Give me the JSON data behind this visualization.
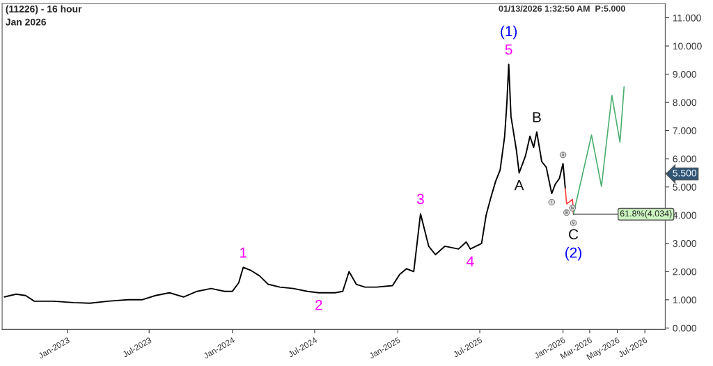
{
  "chart_data": {
    "type": "line",
    "title": "(11226) - 16 hour",
    "subtitle": "Jan 2026",
    "series": [
      {
        "color": "#000000",
        "x": [
          "2022-08-15",
          "2022-09-10",
          "2022-10-01",
          "2022-10-20",
          "2022-12-01",
          "2023-01-15",
          "2023-02-20",
          "2023-04-01",
          "2023-05-15",
          "2023-06-15",
          "2023-07-15",
          "2023-08-15",
          "2023-09-15",
          "2023-10-15",
          "2023-11-15",
          "2023-12-15",
          "2024-01-01",
          "2024-01-15",
          "2024-01-25",
          "2024-02-10",
          "2024-03-01",
          "2024-03-20",
          "2024-04-15",
          "2024-05-15",
          "2024-06-15",
          "2024-07-10",
          "2024-08-15",
          "2024-09-01",
          "2024-09-15",
          "2024-10-01",
          "2024-10-20",
          "2024-11-15",
          "2024-12-20",
          "2025-01-05",
          "2025-01-20",
          "2025-02-05",
          "2025-02-20",
          "2025-03-10",
          "2025-03-25",
          "2025-04-15",
          "2025-05-15",
          "2025-06-01",
          "2025-06-10",
          "2025-07-05",
          "2025-07-15",
          "2025-07-25",
          "2025-08-05",
          "2025-08-15",
          "2025-08-25",
          "2025-08-30",
          "2025-09-03",
          "2025-09-08",
          "2025-09-13",
          "2025-09-20",
          "2025-09-26",
          "2025-10-03",
          "2025-10-10",
          "2025-10-20",
          "2025-10-28",
          "2025-11-04",
          "2025-11-15",
          "2025-11-25",
          "2025-12-07",
          "2025-12-15",
          "2025-12-24",
          "2026-01-01",
          "2026-01-06"
        ],
        "values": [
          1.1,
          1.2,
          1.15,
          0.95,
          0.95,
          0.9,
          0.88,
          0.95,
          1.0,
          1.0,
          1.15,
          1.25,
          1.1,
          1.3,
          1.4,
          1.3,
          1.3,
          1.6,
          2.15,
          2.05,
          1.85,
          1.55,
          1.45,
          1.4,
          1.3,
          1.25,
          1.25,
          1.3,
          2.0,
          1.55,
          1.45,
          1.45,
          1.5,
          1.9,
          2.1,
          2.0,
          4.05,
          2.9,
          2.6,
          2.9,
          2.8,
          3.05,
          2.8,
          3.0,
          4.0,
          4.6,
          5.2,
          5.6,
          6.8,
          8.0,
          9.35,
          7.5,
          7.0,
          6.3,
          5.5,
          5.8,
          6.1,
          6.8,
          6.4,
          6.95,
          5.9,
          5.7,
          4.77,
          5.1,
          5.3,
          5.83,
          4.95
        ]
      },
      {
        "color": "#ff4040",
        "x": [
          "2026-01-06",
          "2026-01-09",
          "2026-01-22",
          "2026-01-24"
        ],
        "values": [
          4.95,
          4.4,
          4.56,
          4.034
        ]
      },
      {
        "color": "#4caf70",
        "x": [
          "2026-01-24",
          "2026-03-05",
          "2026-03-27",
          "2026-04-19",
          "2026-05-07",
          "2026-05-16"
        ],
        "values": [
          4.034,
          6.84,
          5.02,
          8.25,
          6.59,
          8.55
        ]
      }
    ],
    "xlim": [
      "2022-08-10",
      "2026-08-15"
    ],
    "xticks": [
      {
        "value": "2023-01-01",
        "label": "Jan-2023"
      },
      {
        "value": "2023-07-01",
        "label": "Jul-2023"
      },
      {
        "value": "2024-01-01",
        "label": "Jan-2024"
      },
      {
        "value": "2024-07-01",
        "label": "Jul-2024"
      },
      {
        "value": "2025-01-01",
        "label": "Jan-2025"
      },
      {
        "value": "2025-07-01",
        "label": "Jul-2025"
      },
      {
        "value": "2026-01-01",
        "label": "Jan-2026"
      },
      {
        "value": "2026-03-01",
        "label": "Mar-2026"
      },
      {
        "value": "2026-05-01",
        "label": "May-2026"
      },
      {
        "value": "2026-07-01",
        "label": "Jul-2026"
      }
    ],
    "ylim": [
      -0.05,
      11.5
    ],
    "yticks": [
      {
        "value": 0,
        "label": "0.000"
      },
      {
        "value": 1,
        "label": "1.000"
      },
      {
        "value": 2,
        "label": "2.000"
      },
      {
        "value": 3,
        "label": "3.000"
      },
      {
        "value": 4,
        "label": "4.000"
      },
      {
        "value": 5,
        "label": "5.000"
      },
      {
        "value": 5.5,
        "label": "5.500"
      },
      {
        "value": 6,
        "label": "6.000"
      },
      {
        "value": 7,
        "label": "7.000"
      },
      {
        "value": 8,
        "label": "8.000"
      },
      {
        "value": 9,
        "label": "9.000"
      },
      {
        "value": 10,
        "label": "10.000"
      },
      {
        "value": 11,
        "label": "11.000"
      }
    ],
    "grid": false,
    "marker": "none",
    "line_style": "solid",
    "annotations": [
      "01/13/2026 1:32:50 AM  P:5.000",
      {
        "text": "5",
        "x": "2025-09-03",
        "y": 9.35
      },
      {
        "text": "(1)",
        "x": "2025-09-03",
        "y": 9.35
      },
      {
        "text": "1",
        "x": "2024-01-25",
        "y": 2.15
      },
      {
        "text": "2",
        "x": "2024-07-10",
        "y": 1.25
      },
      {
        "text": "3",
        "x": "2025-02-20",
        "y": 4.05
      },
      {
        "text": "4",
        "x": "2025-06-10",
        "y": 2.8
      },
      {
        "text": "A",
        "x": "2025-09-26",
        "y": 5.5
      },
      {
        "text": "B",
        "x": "2025-11-04",
        "y": 6.95
      },
      {
        "text": "i",
        "x": "2025-12-07",
        "y": 4.77
      },
      {
        "text": "ii",
        "x": "2026-01-01",
        "y": 5.83
      },
      {
        "text": "iii",
        "x": "2026-01-09",
        "y": 4.4
      },
      {
        "text": "iv",
        "x": "2026-01-22",
        "y": 4.56
      },
      {
        "text": "v",
        "x": "2026-01-24",
        "y": 4.034
      },
      {
        "text": "C",
        "x": "2026-01-24",
        "y": 4.034
      },
      {
        "text": "(2)",
        "x": "2026-01-24",
        "y": 4.034
      },
      {
        "text": "61.8%(4.034)",
        "x": "2026-01-24",
        "y": 4.034
      }
    ]
  }
}
